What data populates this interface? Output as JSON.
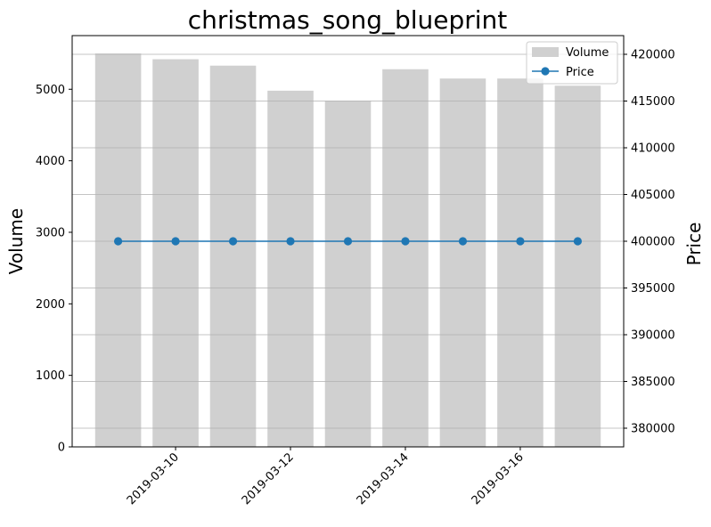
{
  "chart_data": {
    "type": "bar",
    "title": "christmas_song_blueprint",
    "x": [
      "2019-03-09",
      "2019-03-10",
      "2019-03-11",
      "2019-03-12",
      "2019-03-13",
      "2019-03-14",
      "2019-03-15",
      "2019-03-16",
      "2019-03-17"
    ],
    "x_ticks": [
      "2019-03-10",
      "2019-03-12",
      "2019-03-14",
      "2019-03-16"
    ],
    "left_axis": {
      "label": "Volume",
      "ylim": [
        0,
        5750
      ],
      "ticks": [
        0,
        1000,
        2000,
        3000,
        4000,
        5000
      ]
    },
    "right_axis": {
      "label": "Price",
      "ylim": [
        378000,
        422000
      ],
      "ticks": [
        380000,
        385000,
        390000,
        395000,
        400000,
        405000,
        410000,
        415000,
        420000
      ],
      "grid": true
    },
    "series": [
      {
        "name": "Volume",
        "type": "bar",
        "axis": "left",
        "color": "#d0d0d0",
        "values": [
          5500,
          5420,
          5330,
          4980,
          4840,
          5280,
          5150,
          5150,
          5050
        ]
      },
      {
        "name": "Price",
        "type": "line",
        "axis": "right",
        "color": "#1f77b4",
        "marker": "circle",
        "values": [
          400000,
          400000,
          400000,
          400000,
          400000,
          400000,
          400000,
          400000,
          400000
        ]
      }
    ],
    "legend": {
      "position": "top-right",
      "entries": [
        "Volume",
        "Price"
      ]
    }
  }
}
